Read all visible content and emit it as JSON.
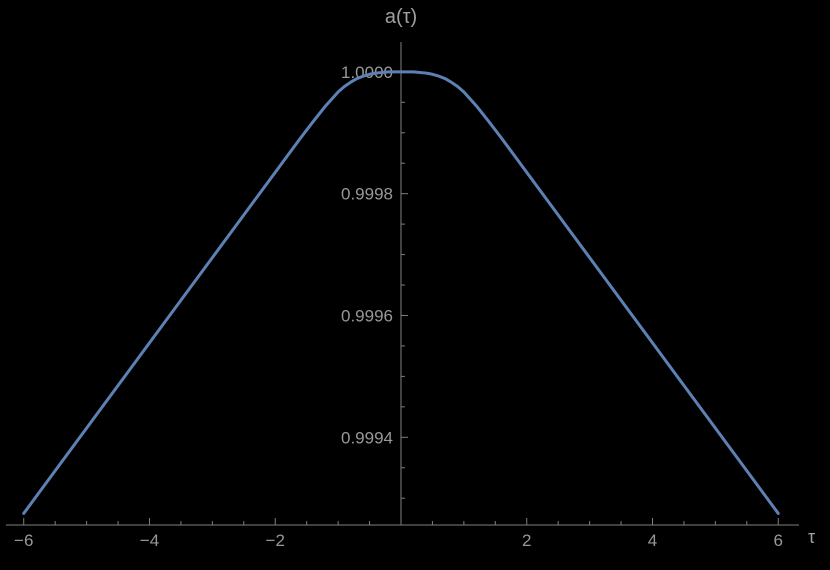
{
  "figure": {
    "background": "#000000",
    "y_axis_title": "a(τ)",
    "x_axis_title": "τ"
  },
  "chart_data": {
    "type": "line",
    "title": "",
    "ylabel": "a(τ)",
    "xlabel": "τ",
    "xlim": [
      -6.25,
      6.33
    ],
    "ylim": [
      0.999256,
      1.000049
    ],
    "grid": false,
    "legend": "none",
    "axis_color": "#7f7f7f",
    "tick_label_color": "#989898",
    "x_tick_values": [
      -6,
      -4,
      -2,
      2,
      4,
      6
    ],
    "x_tick_labels": [
      "−6",
      "−4",
      "−2",
      "2",
      "4",
      "6"
    ],
    "x_minor_step": 0.5,
    "y_tick_values": [
      0.9994,
      0.9996,
      0.9998,
      1.0
    ],
    "y_tick_labels": [
      "0.9994",
      "0.9996",
      "0.9998",
      "1.0000"
    ],
    "y_minor_step": 5e-05,
    "series": [
      {
        "name": "a(τ)",
        "color": "#5e81b5",
        "stroke_width": 3,
        "points": [
          [
            -6.0,
            0.999275
          ],
          [
            -5.5,
            0.999345
          ],
          [
            -5.0,
            0.999415
          ],
          [
            -4.5,
            0.999485
          ],
          [
            -4.0,
            0.999555
          ],
          [
            -3.5,
            0.999625
          ],
          [
            -3.0,
            0.999695
          ],
          [
            -2.5,
            0.999765
          ],
          [
            -2.0,
            0.999835
          ],
          [
            -1.8,
            0.999863
          ],
          [
            -1.6,
            0.999891
          ],
          [
            -1.4,
            0.999918
          ],
          [
            -1.2,
            0.999944
          ],
          [
            -1.0,
            0.999967
          ],
          [
            -0.9,
            0.999976
          ],
          [
            -0.8,
            0.999983
          ],
          [
            -0.7,
            0.999989
          ],
          [
            -0.6,
            0.999993
          ],
          [
            -0.5,
            0.999996
          ],
          [
            -0.4,
            0.999998
          ],
          [
            -0.3,
            0.999999
          ],
          [
            -0.2,
            1.0
          ],
          [
            -0.1,
            1.0
          ],
          [
            0.0,
            1.0
          ],
          [
            0.1,
            1.0
          ],
          [
            0.2,
            1.0
          ],
          [
            0.3,
            0.999999
          ],
          [
            0.4,
            0.999998
          ],
          [
            0.5,
            0.999996
          ],
          [
            0.6,
            0.999993
          ],
          [
            0.7,
            0.999989
          ],
          [
            0.8,
            0.999983
          ],
          [
            0.9,
            0.999976
          ],
          [
            1.0,
            0.999967
          ],
          [
            1.2,
            0.999944
          ],
          [
            1.4,
            0.999918
          ],
          [
            1.6,
            0.999891
          ],
          [
            1.8,
            0.999863
          ],
          [
            2.0,
            0.999835
          ],
          [
            2.5,
            0.999765
          ],
          [
            3.0,
            0.999695
          ],
          [
            3.5,
            0.999625
          ],
          [
            4.0,
            0.999555
          ],
          [
            4.5,
            0.999485
          ],
          [
            5.0,
            0.999415
          ],
          [
            5.5,
            0.999345
          ],
          [
            6.0,
            0.999275
          ]
        ]
      }
    ]
  }
}
